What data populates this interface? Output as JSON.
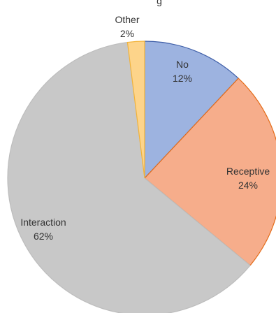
{
  "chart_data": {
    "type": "pie",
    "title_fragment": "g",
    "slices": [
      {
        "label": "No",
        "value": 12,
        "value_label": "12%",
        "fill": "#9DB3E0",
        "stroke": "#3F5FA8"
      },
      {
        "label": "Receptive",
        "value": 24,
        "value_label": "24%",
        "fill": "#F6AD8B",
        "stroke": "#E46C19"
      },
      {
        "label": "Interaction",
        "value": 62,
        "value_label": "62%",
        "fill": "#C8C8C8",
        "stroke": "#BDBDBD"
      },
      {
        "label": "Other",
        "value": 2,
        "value_label": "2%",
        "fill": "#FDD48A",
        "stroke": "#F2B33A"
      }
    ]
  }
}
